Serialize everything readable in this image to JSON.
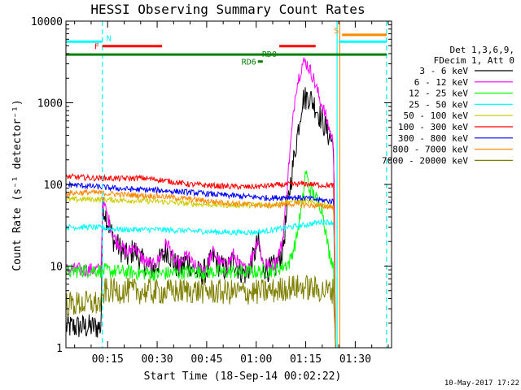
{
  "chart_data": {
    "type": "line",
    "title": "HESSI Observing Summary Count Rates",
    "xlabel": "Start Time (18-Sep-14 00:02:22)",
    "ylabel": "Count Rate (s⁻¹ detector⁻¹)",
    "y_scale": "log",
    "ylim": [
      1,
      10000
    ],
    "xlim_minutes": [
      2.37,
      101.0
    ],
    "x_tick_labels": [
      "00:15",
      "00:30",
      "00:45",
      "01:00",
      "01:15",
      "01:30"
    ],
    "y_tick_labels": [
      "1",
      "10",
      "100",
      "1000",
      "10000"
    ],
    "legend_header": [
      "Det 1,3,6,9,",
      "FDecim 1, Att 0"
    ],
    "series": [
      {
        "name": "3 - 6 keV",
        "color": "#000000",
        "points": [
          [
            2.4,
            1.8
          ],
          [
            13,
            1.8
          ],
          [
            13.5,
            60
          ],
          [
            15,
            35
          ],
          [
            17,
            20
          ],
          [
            19,
            16
          ],
          [
            21,
            13
          ],
          [
            23,
            16
          ],
          [
            25,
            12
          ],
          [
            27,
            10
          ],
          [
            29,
            9
          ],
          [
            31,
            12
          ],
          [
            33,
            16
          ],
          [
            35,
            11
          ],
          [
            37,
            9
          ],
          [
            39,
            12
          ],
          [
            41,
            9
          ],
          [
            43,
            8
          ],
          [
            45,
            9
          ],
          [
            47,
            13
          ],
          [
            49,
            10
          ],
          [
            51,
            9
          ],
          [
            53,
            12
          ],
          [
            55,
            9
          ],
          [
            57,
            8
          ],
          [
            59,
            12
          ],
          [
            60.5,
            20
          ],
          [
            62,
            10
          ],
          [
            64,
            9
          ],
          [
            66,
            10
          ],
          [
            68,
            15
          ],
          [
            70,
            80
          ],
          [
            72,
            300
          ],
          [
            74,
            1100
          ],
          [
            76,
            1200
          ],
          [
            78,
            900
          ],
          [
            80,
            600
          ],
          [
            82,
            400
          ],
          [
            83.5,
            300
          ],
          [
            84,
            1
          ]
        ]
      },
      {
        "name": "6 - 12 keV",
        "color": "#ff00ff",
        "points": [
          [
            2.4,
            9
          ],
          [
            13,
            9
          ],
          [
            13.5,
            65
          ],
          [
            15,
            40
          ],
          [
            17,
            22
          ],
          [
            19,
            18
          ],
          [
            21,
            14
          ],
          [
            23,
            18
          ],
          [
            25,
            13
          ],
          [
            27,
            11
          ],
          [
            29,
            10
          ],
          [
            31,
            13
          ],
          [
            33,
            20
          ],
          [
            35,
            12
          ],
          [
            37,
            10
          ],
          [
            39,
            14
          ],
          [
            41,
            10
          ],
          [
            43,
            9
          ],
          [
            45,
            10
          ],
          [
            47,
            15
          ],
          [
            49,
            11
          ],
          [
            51,
            10
          ],
          [
            53,
            14
          ],
          [
            55,
            10
          ],
          [
            57,
            9
          ],
          [
            59,
            14
          ],
          [
            60.5,
            22
          ],
          [
            62,
            11
          ],
          [
            64,
            10
          ],
          [
            66,
            11
          ],
          [
            68,
            20
          ],
          [
            70,
            200
          ],
          [
            72,
            1500
          ],
          [
            74,
            3000
          ],
          [
            75,
            3200
          ],
          [
            77,
            2200
          ],
          [
            79,
            1200
          ],
          [
            81,
            700
          ],
          [
            83.5,
            300
          ],
          [
            84,
            1
          ]
        ]
      },
      {
        "name": "12 - 25 keV",
        "color": "#00ff00",
        "points": [
          [
            2.4,
            8.5
          ],
          [
            10,
            9
          ],
          [
            20,
            8.5
          ],
          [
            30,
            8
          ],
          [
            40,
            8.5
          ],
          [
            50,
            8.5
          ],
          [
            60,
            8.5
          ],
          [
            66,
            9
          ],
          [
            70,
            11
          ],
          [
            72,
            20
          ],
          [
            74,
            60
          ],
          [
            75,
            150
          ],
          [
            76,
            90
          ],
          [
            78,
            70
          ],
          [
            80,
            50
          ],
          [
            82,
            15
          ],
          [
            83.5,
            10
          ],
          [
            84,
            1
          ]
        ]
      },
      {
        "name": "25 - 50 keV",
        "color": "#00ffff",
        "points": [
          [
            2.4,
            30
          ],
          [
            10,
            30
          ],
          [
            20,
            28
          ],
          [
            30,
            28
          ],
          [
            40,
            27
          ],
          [
            50,
            26
          ],
          [
            60,
            26
          ],
          [
            66,
            28
          ],
          [
            70,
            30
          ],
          [
            75,
            32
          ],
          [
            80,
            35
          ],
          [
            83.5,
            34
          ],
          [
            84,
            1
          ]
        ]
      },
      {
        "name": "50 - 100 keV",
        "color": "#cccc00",
        "points": [
          [
            2.4,
            65
          ],
          [
            10,
            66
          ],
          [
            20,
            64
          ],
          [
            30,
            62
          ],
          [
            40,
            58
          ],
          [
            50,
            56
          ],
          [
            60,
            56
          ],
          [
            64,
            56
          ],
          [
            70,
            62
          ],
          [
            75,
            62
          ],
          [
            80,
            57
          ],
          [
            83.5,
            55
          ],
          [
            84,
            1
          ]
        ]
      },
      {
        "name": "100 - 300 keV",
        "color": "#ff0000",
        "points": [
          [
            2.4,
            125
          ],
          [
            10,
            120
          ],
          [
            20,
            118
          ],
          [
            25,
            120
          ],
          [
            30,
            115
          ],
          [
            40,
            100
          ],
          [
            50,
            95
          ],
          [
            57,
            93
          ],
          [
            62,
            95
          ],
          [
            66,
            98
          ],
          [
            70,
            100
          ],
          [
            75,
            102
          ],
          [
            80,
            98
          ],
          [
            83.5,
            97
          ],
          [
            84,
            1
          ]
        ]
      },
      {
        "name": "300 - 800 keV",
        "color": "#0000ff",
        "points": [
          [
            2.4,
            100
          ],
          [
            10,
            95
          ],
          [
            20,
            88
          ],
          [
            30,
            85
          ],
          [
            40,
            80
          ],
          [
            50,
            74
          ],
          [
            60,
            70
          ],
          [
            64,
            68
          ],
          [
            70,
            70
          ],
          [
            75,
            68
          ],
          [
            80,
            64
          ],
          [
            83.5,
            62
          ],
          [
            84,
            1
          ]
        ]
      },
      {
        "name": "800 - 7000 keV",
        "color": "#ff8800",
        "points": [
          [
            2.4,
            78
          ],
          [
            10,
            80
          ],
          [
            20,
            75
          ],
          [
            30,
            72
          ],
          [
            40,
            66
          ],
          [
            50,
            60
          ],
          [
            60,
            56
          ],
          [
            64,
            55
          ],
          [
            70,
            58
          ],
          [
            75,
            56
          ],
          [
            80,
            54
          ],
          [
            83.5,
            53
          ],
          [
            84,
            1
          ]
        ]
      },
      {
        "name": "7000 - 20000 keV",
        "color": "#808000",
        "points": [
          [
            2.4,
            3.4
          ],
          [
            10,
            3.5
          ],
          [
            13.3,
            3.5
          ],
          [
            14,
            5
          ],
          [
            20,
            5
          ],
          [
            30,
            4.8
          ],
          [
            40,
            5
          ],
          [
            50,
            4.8
          ],
          [
            60,
            4.8
          ],
          [
            66,
            5
          ],
          [
            70,
            5.5
          ],
          [
            75,
            5.5
          ],
          [
            80,
            5
          ],
          [
            83.5,
            5
          ],
          [
            84,
            1
          ]
        ]
      }
    ],
    "flag_bars": [
      {
        "label": "N",
        "color": "#00ffff",
        "y": 5600,
        "segments": [
          [
            2.4,
            13.4
          ],
          [
            85,
            99.5
          ]
        ]
      },
      {
        "label": "S",
        "color": "#ff8800",
        "y": 6800,
        "segments": [
          [
            86,
            99.5
          ]
        ]
      },
      {
        "label": "F",
        "color": "#ff0000",
        "y": 4950,
        "segments": [
          [
            13.4,
            31.5
          ],
          [
            67,
            78
          ]
        ]
      },
      {
        "label": "RD0",
        "color": "#008000",
        "y": 3900,
        "segments": [
          [
            2.4,
            99.5
          ]
        ]
      },
      {
        "label": "RD6",
        "color": "#008000",
        "y": 3200,
        "segments": [
          [
            60.5,
            62
          ]
        ]
      }
    ],
    "vertical_lines": [
      {
        "x": 13.4,
        "color": "#00ffff",
        "style": "dashed"
      },
      {
        "x": 84.5,
        "color": "#00ffff",
        "style": "solid"
      },
      {
        "x": 85.3,
        "color": "#ff8800",
        "style": "solid"
      },
      {
        "x": 99.5,
        "color": "#ff8800",
        "style": "dashed"
      },
      {
        "x": 99.5,
        "color": "#00ffff",
        "style": "dashed"
      }
    ],
    "footer_date": "10-May-2017 17:22"
  }
}
